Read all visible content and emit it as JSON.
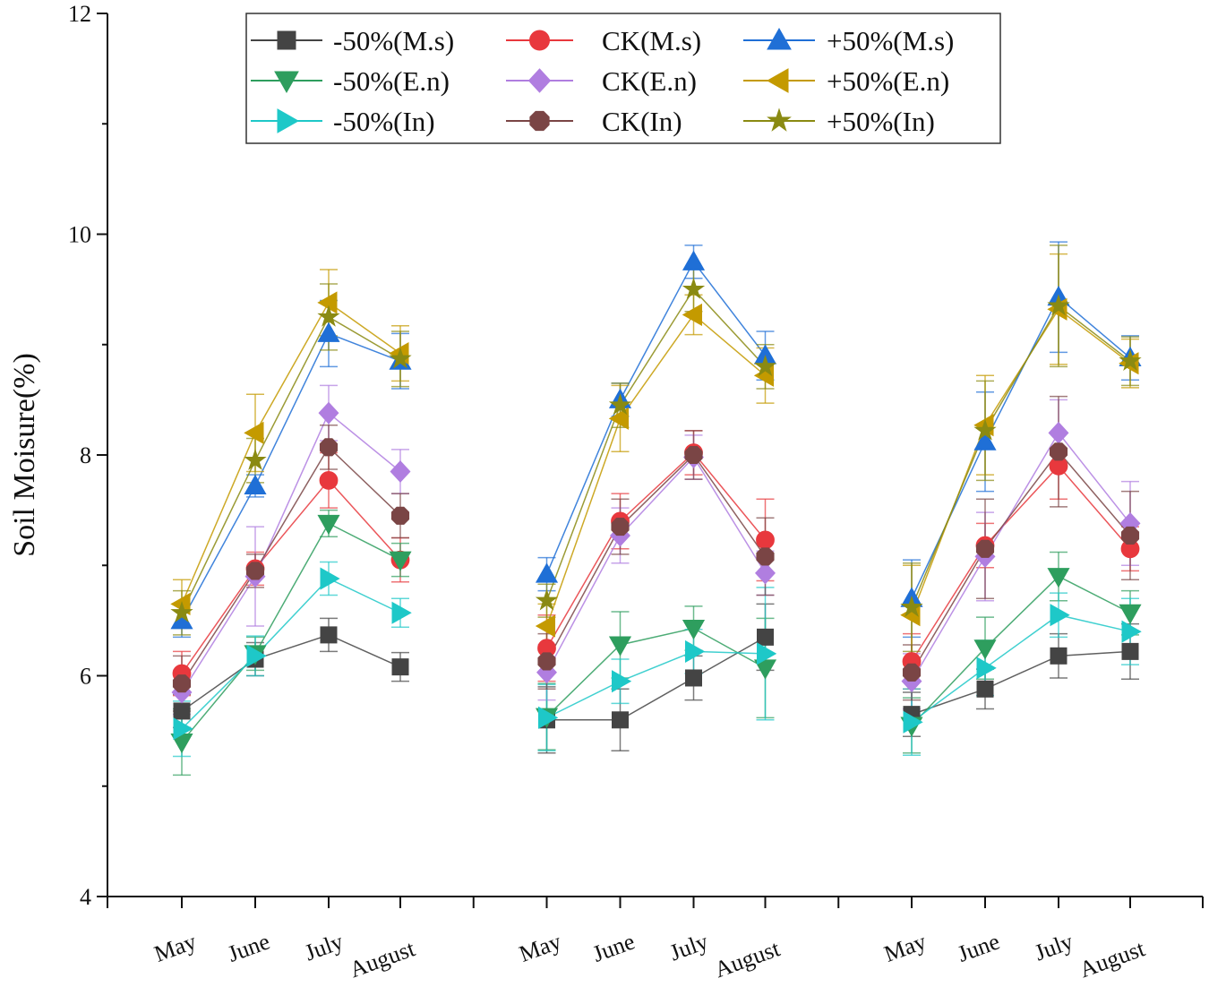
{
  "chart_data": {
    "type": "line",
    "title": "",
    "xlabel": "",
    "ylabel": "Soil Moisure(%)",
    "ylim": [
      4,
      12
    ],
    "yticks": [
      "4",
      "6",
      "8",
      "10",
      "12"
    ],
    "grid": false,
    "legend_position": "top",
    "groups": 3,
    "categories": [
      "May",
      "June",
      "July",
      "August"
    ],
    "series": [
      {
        "name": "-50%(M.s)",
        "color": "#444444",
        "marker": "square",
        "values": [
          [
            5.68,
            6.15,
            6.37,
            6.08
          ],
          [
            5.6,
            5.6,
            5.98,
            6.35
          ],
          [
            5.65,
            5.88,
            6.18,
            6.22
          ]
        ],
        "err": [
          [
            0.15,
            0.15,
            0.15,
            0.13
          ],
          [
            0.3,
            0.28,
            0.2,
            0.3
          ],
          [
            0.2,
            0.18,
            0.2,
            0.25
          ]
        ]
      },
      {
        "name": "CK(M.s)",
        "color": "#e8383d",
        "marker": "circle",
        "values": [
          [
            6.02,
            6.97,
            7.77,
            7.05
          ],
          [
            6.25,
            7.4,
            8.02,
            7.23
          ],
          [
            6.13,
            7.18,
            7.9,
            7.15
          ]
        ],
        "err": [
          [
            0.2,
            0.15,
            0.25,
            0.2
          ],
          [
            0.3,
            0.25,
            0.2,
            0.37
          ],
          [
            0.25,
            0.2,
            0.3,
            0.2
          ]
        ]
      },
      {
        "name": "+50%(M.s)",
        "color": "#1f6fd6",
        "marker": "triangle-up",
        "values": [
          [
            6.5,
            7.72,
            9.1,
            8.85
          ],
          [
            6.92,
            8.5,
            9.75,
            8.9
          ],
          [
            6.7,
            8.12,
            9.43,
            8.88
          ]
        ],
        "err": [
          [
            0.15,
            0.1,
            0.3,
            0.25
          ],
          [
            0.15,
            0.15,
            0.15,
            0.22
          ],
          [
            0.35,
            0.45,
            0.5,
            0.2
          ]
        ]
      },
      {
        "name": "-50%(E.n)",
        "color": "#2e9e5e",
        "marker": "triangle-down",
        "values": [
          [
            5.4,
            6.2,
            7.38,
            7.05
          ],
          [
            5.63,
            6.28,
            6.43,
            6.07
          ],
          [
            5.55,
            6.25,
            6.9,
            6.57
          ]
        ],
        "err": [
          [
            0.3,
            0.15,
            0.12,
            0.15
          ],
          [
            0.3,
            0.3,
            0.2,
            0.45
          ],
          [
            0.25,
            0.28,
            0.22,
            0.2
          ]
        ]
      },
      {
        "name": "CK(E.n)",
        "color": "#b07ee0",
        "marker": "diamond",
        "values": [
          [
            5.85,
            6.9,
            8.38,
            7.85
          ],
          [
            6.03,
            7.27,
            7.98,
            6.93
          ],
          [
            5.95,
            7.08,
            8.2,
            7.38
          ]
        ],
        "err": [
          [
            0.2,
            0.45,
            0.25,
            0.2
          ],
          [
            0.25,
            0.25,
            0.2,
            0.2
          ],
          [
            0.25,
            0.4,
            0.3,
            0.38
          ]
        ]
      },
      {
        "name": "+50%(E.n)",
        "color": "#c49a00",
        "marker": "triangle-left",
        "values": [
          [
            6.65,
            8.2,
            9.38,
            8.92
          ],
          [
            6.45,
            8.33,
            9.27,
            8.72
          ],
          [
            6.55,
            8.27,
            9.32,
            8.83
          ]
        ],
        "err": [
          [
            0.22,
            0.35,
            0.3,
            0.25
          ],
          [
            0.2,
            0.3,
            0.18,
            0.25
          ],
          [
            0.45,
            0.45,
            0.5,
            0.22
          ]
        ]
      },
      {
        "name": "-50%(In)",
        "color": "#1ec8c8",
        "marker": "triangle-right",
        "values": [
          [
            5.52,
            6.18,
            6.88,
            6.57
          ],
          [
            5.62,
            5.95,
            6.22,
            6.2
          ],
          [
            5.58,
            6.07,
            6.55,
            6.4
          ]
        ],
        "err": [
          [
            0.25,
            0.18,
            0.15,
            0.13
          ],
          [
            0.3,
            0.2,
            0.2,
            0.6
          ],
          [
            0.3,
            0.25,
            0.2,
            0.3
          ]
        ]
      },
      {
        "name": "CK(In)",
        "color": "#7a4545",
        "marker": "hexagon",
        "values": [
          [
            5.93,
            6.95,
            8.07,
            7.45
          ],
          [
            6.13,
            7.35,
            8.0,
            7.08
          ],
          [
            6.03,
            7.15,
            8.03,
            7.27
          ]
        ],
        "err": [
          [
            0.25,
            0.15,
            0.2,
            0.2
          ],
          [
            0.25,
            0.25,
            0.22,
            0.35
          ],
          [
            0.25,
            0.45,
            0.5,
            0.4
          ]
        ]
      },
      {
        "name": "+50%(In)",
        "color": "#8a8a12",
        "marker": "star",
        "values": [
          [
            6.57,
            7.95,
            9.25,
            8.87
          ],
          [
            6.68,
            8.45,
            9.5,
            8.8
          ],
          [
            6.62,
            8.22,
            9.35,
            8.85
          ]
        ],
        "err": [
          [
            0.2,
            0.2,
            0.3,
            0.25
          ],
          [
            0.15,
            0.2,
            0.2,
            0.2
          ],
          [
            0.4,
            0.45,
            0.55,
            0.22
          ]
        ]
      }
    ]
  }
}
